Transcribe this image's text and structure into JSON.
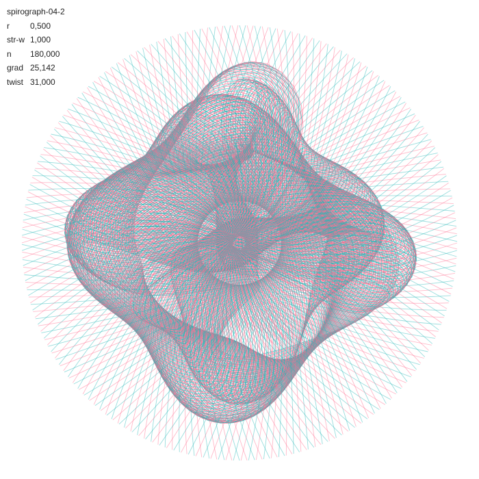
{
  "sketch": {
    "title": "spirograph-04-2",
    "params": [
      {
        "key": "r",
        "label": "r",
        "value": "0,500"
      },
      {
        "key": "str_w",
        "label": "str-w",
        "value": "1,000"
      },
      {
        "key": "n",
        "label": "n",
        "value": "180,000"
      },
      {
        "key": "grad",
        "label": "grad",
        "value": "25,142"
      },
      {
        "key": "twist",
        "label": "twist",
        "value": "31,000"
      }
    ]
  },
  "colors": {
    "background": "#ffffff",
    "text": "#222222",
    "teal": "#2ab7b7",
    "pink": "#ff6f91"
  }
}
